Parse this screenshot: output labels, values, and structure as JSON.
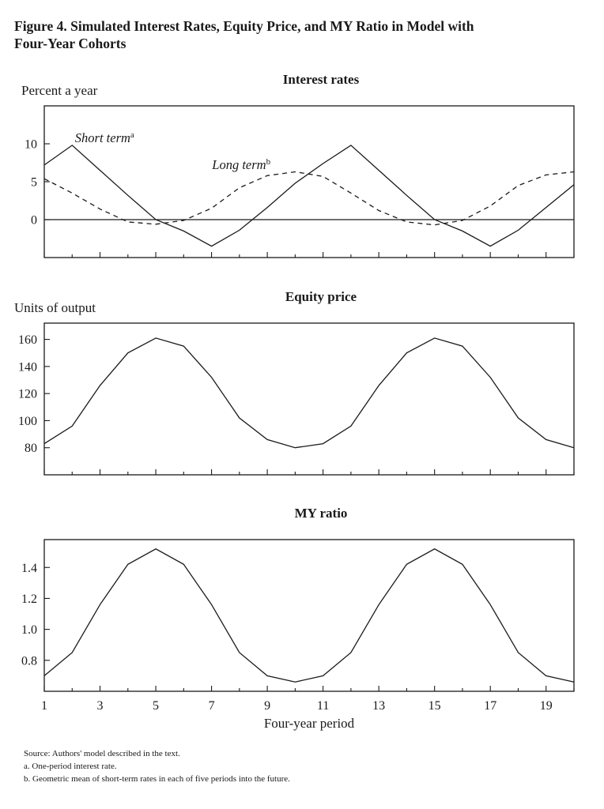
{
  "figure": {
    "title_line1": "Figure 4.  Simulated Interest Rates, Equity Price, and MY Ratio in Model with",
    "title_line2": "Four-Year Cohorts"
  },
  "chart_data": [
    {
      "type": "line",
      "title": "Interest rates",
      "ylabel": "Percent a year",
      "xlabel": "",
      "xlim": [
        1,
        20
      ],
      "ylim": [
        -5,
        15
      ],
      "y_ticks": [
        0,
        5,
        10
      ],
      "y_tick_labels": [
        "0",
        "5",
        "10"
      ],
      "x_ticks": [
        1,
        2,
        3,
        4,
        5,
        6,
        7,
        8,
        9,
        10,
        11,
        12,
        13,
        14,
        15,
        16,
        17,
        18,
        19,
        20
      ],
      "zero_line": true,
      "grid": false,
      "x": [
        1,
        2,
        3,
        4,
        5,
        6,
        7,
        8,
        9,
        10,
        11,
        12,
        13,
        14,
        15,
        16,
        17,
        18,
        19,
        20
      ],
      "series": [
        {
          "name": "Short term",
          "name_superscript": "a",
          "style": "solid",
          "values": [
            7.2,
            9.8,
            6.5,
            3.2,
            0.0,
            -1.5,
            -3.5,
            -1.4,
            1.6,
            4.8,
            7.4,
            9.8,
            6.5,
            3.2,
            0.0,
            -1.5,
            -3.5,
            -1.4,
            1.6,
            4.6
          ]
        },
        {
          "name": "Long term",
          "name_superscript": "b",
          "style": "dashed",
          "values": [
            5.4,
            3.5,
            1.4,
            -0.3,
            -0.6,
            -0.1,
            1.5,
            4.2,
            5.8,
            6.3,
            5.7,
            3.5,
            1.2,
            -0.3,
            -0.7,
            -0.1,
            1.8,
            4.5,
            5.9,
            6.3
          ]
        }
      ]
    },
    {
      "type": "line",
      "title": "Equity price",
      "ylabel": "Units of output",
      "xlabel": "",
      "xlim": [
        1,
        20
      ],
      "ylim": [
        60,
        172
      ],
      "y_ticks": [
        80,
        100,
        120,
        140,
        160
      ],
      "y_tick_labels": [
        "80",
        "100",
        "120",
        "140",
        "160"
      ],
      "x_ticks": [
        1,
        2,
        3,
        4,
        5,
        6,
        7,
        8,
        9,
        10,
        11,
        12,
        13,
        14,
        15,
        16,
        17,
        18,
        19,
        20
      ],
      "grid": false,
      "x": [
        1,
        2,
        3,
        4,
        5,
        6,
        7,
        8,
        9,
        10,
        11,
        12,
        13,
        14,
        15,
        16,
        17,
        18,
        19,
        20
      ],
      "series": [
        {
          "name": "",
          "style": "solid",
          "values": [
            83,
            96,
            126,
            150,
            161,
            155,
            132,
            102,
            86,
            80,
            83,
            96,
            126,
            150,
            161,
            155,
            132,
            102,
            86,
            80
          ]
        }
      ]
    },
    {
      "type": "line",
      "title": "MY ratio",
      "ylabel": "",
      "xlabel": "Four-year period",
      "xlim": [
        1,
        20
      ],
      "ylim": [
        0.6,
        1.58
      ],
      "y_ticks": [
        0.8,
        1.0,
        1.2,
        1.4
      ],
      "y_tick_labels": [
        "0.8",
        "1.0",
        "1.2",
        "1.4"
      ],
      "x_ticks": [
        1,
        2,
        3,
        4,
        5,
        6,
        7,
        8,
        9,
        10,
        11,
        12,
        13,
        14,
        15,
        16,
        17,
        18,
        19,
        20
      ],
      "x_tick_labels": [
        "1",
        "3",
        "5",
        "7",
        "9",
        "11",
        "13",
        "15",
        "17",
        "19"
      ],
      "x_tick_label_positions": [
        1,
        3,
        5,
        7,
        9,
        11,
        13,
        15,
        17,
        19
      ],
      "grid": false,
      "x": [
        1,
        2,
        3,
        4,
        5,
        6,
        7,
        8,
        9,
        10,
        11,
        12,
        13,
        14,
        15,
        16,
        17,
        18,
        19,
        20
      ],
      "series": [
        {
          "name": "",
          "style": "solid",
          "values": [
            0.7,
            0.85,
            1.16,
            1.42,
            1.52,
            1.42,
            1.16,
            0.85,
            0.7,
            0.66,
            0.7,
            0.85,
            1.16,
            1.42,
            1.52,
            1.42,
            1.16,
            0.85,
            0.7,
            0.66
          ]
        }
      ]
    }
  ],
  "notes": {
    "source": "Source:  Authors' model described in the text.",
    "note_a": "a.  One-period interest rate.",
    "note_b": "b.  Geometric mean of short-term rates in each of five periods into the future."
  }
}
